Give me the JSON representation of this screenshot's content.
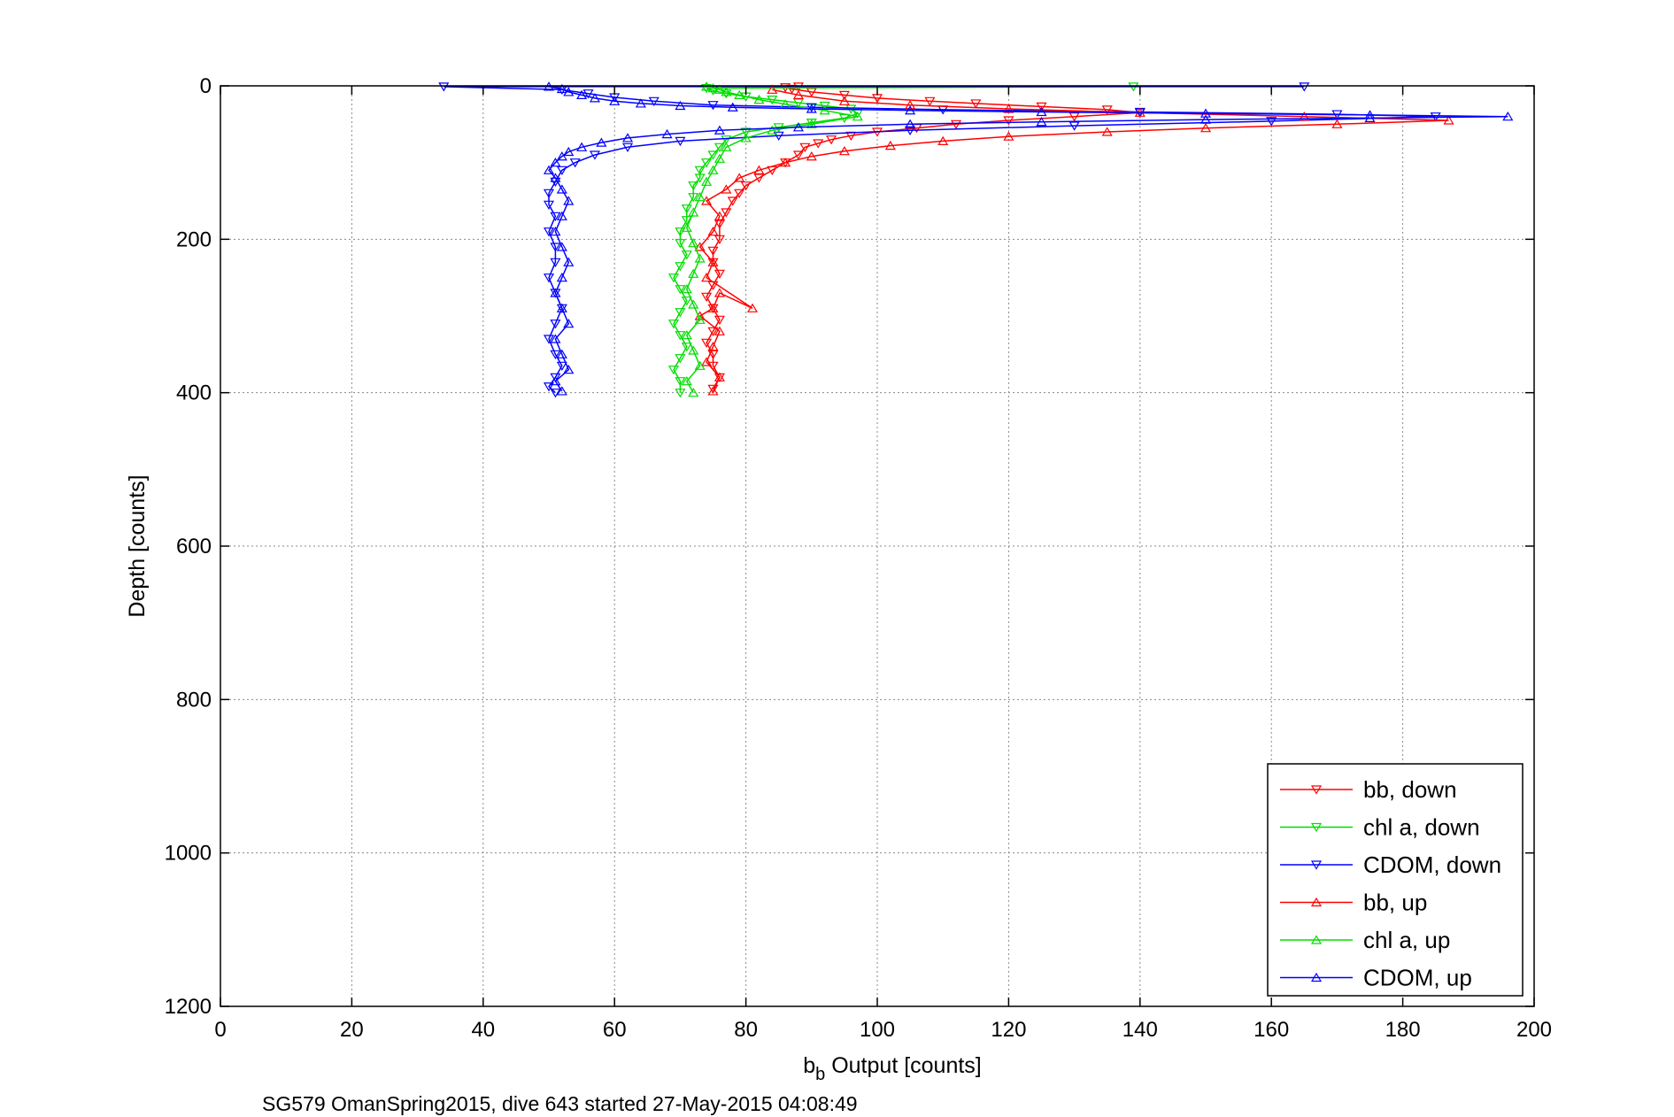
{
  "chart_data": {
    "type": "line",
    "title": "",
    "xlabel": "b",
    "xlabel_sub": "b",
    "xlabel_rest": " Output [counts]",
    "ylabel": "Depth [counts]",
    "caption": "SG579 OmanSpring2015, dive 643 started 27-May-2015 04:08:49",
    "xlim": [
      0,
      200
    ],
    "ylim": [
      0,
      1200
    ],
    "y_reversed": true,
    "xticks": [
      0,
      20,
      40,
      60,
      80,
      100,
      120,
      140,
      160,
      180,
      200
    ],
    "yticks": [
      0,
      200,
      400,
      600,
      800,
      1000,
      1200
    ],
    "grid": true,
    "legend_position": "bottom-right",
    "series": [
      {
        "name": "bb, down",
        "color": "#ff0000",
        "marker": "triangle-down",
        "x": [
          88,
          86,
          87,
          90,
          95,
          100,
          108,
          115,
          125,
          135,
          140,
          130,
          120,
          112,
          106,
          100,
          96,
          93,
          91,
          89,
          88,
          86,
          84,
          82,
          80,
          79,
          78,
          77,
          76,
          76,
          75,
          75,
          76,
          75,
          74,
          75,
          76,
          75,
          74,
          75,
          75,
          76,
          75
        ],
        "y": [
          1,
          2,
          4,
          8,
          12,
          16,
          20,
          23,
          27,
          31,
          35,
          40,
          45,
          50,
          55,
          60,
          65,
          70,
          75,
          80,
          90,
          100,
          110,
          120,
          130,
          140,
          150,
          165,
          180,
          200,
          215,
          230,
          245,
          260,
          275,
          290,
          305,
          320,
          335,
          350,
          365,
          380,
          395
        ]
      },
      {
        "name": "chl a, down",
        "color": "#00dd00",
        "marker": "triangle-down",
        "x": [
          139,
          74,
          75,
          77,
          80,
          84,
          88,
          92,
          96,
          97,
          95,
          90,
          85,
          80,
          77,
          76,
          75,
          74,
          73,
          73,
          72,
          72,
          71,
          71,
          70,
          70,
          71,
          70,
          69,
          70,
          71,
          70,
          69,
          70,
          71,
          70,
          69,
          70,
          70
        ],
        "y": [
          1,
          3,
          6,
          10,
          14,
          18,
          22,
          26,
          30,
          36,
          42,
          48,
          54,
          60,
          70,
          80,
          90,
          100,
          110,
          120,
          130,
          145,
          160,
          175,
          190,
          205,
          220,
          235,
          250,
          265,
          280,
          295,
          310,
          325,
          340,
          355,
          370,
          385,
          400
        ]
      },
      {
        "name": "CDOM, down",
        "color": "#0000ff",
        "marker": "triangle-down",
        "x": [
          165,
          34,
          52,
          56,
          60,
          66,
          75,
          90,
          110,
          140,
          170,
          185,
          160,
          130,
          105,
          85,
          70,
          62,
          57,
          54,
          52,
          51,
          50,
          50,
          51,
          50,
          51,
          51,
          50,
          51,
          52,
          51,
          50,
          51,
          52,
          51,
          50,
          51
        ],
        "y": [
          1,
          1,
          5,
          10,
          15,
          20,
          25,
          28,
          31,
          34,
          37,
          40,
          46,
          52,
          58,
          65,
          72,
          80,
          90,
          100,
          110,
          125,
          140,
          155,
          170,
          190,
          210,
          230,
          250,
          270,
          290,
          310,
          330,
          350,
          365,
          380,
          392,
          400
        ]
      },
      {
        "name": "bb, up",
        "color": "#ff0000",
        "marker": "triangle-up",
        "x": [
          75,
          76,
          74,
          75,
          76,
          73,
          75,
          76,
          81,
          74,
          75,
          73,
          75,
          76,
          74,
          77,
          79,
          82,
          86,
          90,
          95,
          102,
          110,
          120,
          135,
          150,
          170,
          187,
          165,
          140,
          120,
          105,
          95,
          88,
          84
        ],
        "y": [
          398,
          380,
          360,
          340,
          320,
          300,
          290,
          270,
          290,
          250,
          230,
          210,
          190,
          170,
          150,
          135,
          120,
          110,
          100,
          92,
          85,
          78,
          72,
          66,
          60,
          55,
          50,
          45,
          40,
          35,
          30,
          25,
          20,
          12,
          5
        ]
      },
      {
        "name": "chl a, up",
        "color": "#00dd00",
        "marker": "triangle-up",
        "x": [
          72,
          71,
          73,
          72,
          71,
          73,
          72,
          71,
          72,
          73,
          72,
          71,
          72,
          73,
          74,
          75,
          76,
          77,
          80,
          84,
          90,
          97,
          92,
          86,
          82,
          79,
          77,
          76,
          75,
          74
        ],
        "y": [
          400,
          385,
          365,
          345,
          325,
          305,
          285,
          265,
          245,
          225,
          205,
          185,
          165,
          145,
          125,
          110,
          95,
          80,
          68,
          58,
          50,
          40,
          32,
          24,
          18,
          12,
          8,
          5,
          3,
          1
        ]
      },
      {
        "name": "CDOM, up",
        "color": "#0000ff",
        "marker": "triangle-up",
        "x": [
          52,
          51,
          53,
          52,
          51,
          53,
          52,
          51,
          52,
          53,
          52,
          51,
          52,
          53,
          52,
          51,
          50,
          51,
          52,
          53,
          55,
          58,
          62,
          68,
          76,
          88,
          105,
          125,
          150,
          175,
          196,
          175,
          150,
          125,
          105,
          90,
          78,
          70,
          64,
          60,
          57,
          55,
          53,
          52,
          50
        ],
        "y": [
          398,
          385,
          370,
          350,
          330,
          310,
          290,
          270,
          250,
          230,
          210,
          190,
          170,
          150,
          135,
          120,
          110,
          100,
          92,
          86,
          80,
          74,
          68,
          63,
          58,
          54,
          50,
          47,
          44,
          42,
          40,
          38,
          36,
          34,
          32,
          30,
          28,
          26,
          23,
          20,
          16,
          12,
          8,
          4,
          1
        ]
      }
    ]
  }
}
